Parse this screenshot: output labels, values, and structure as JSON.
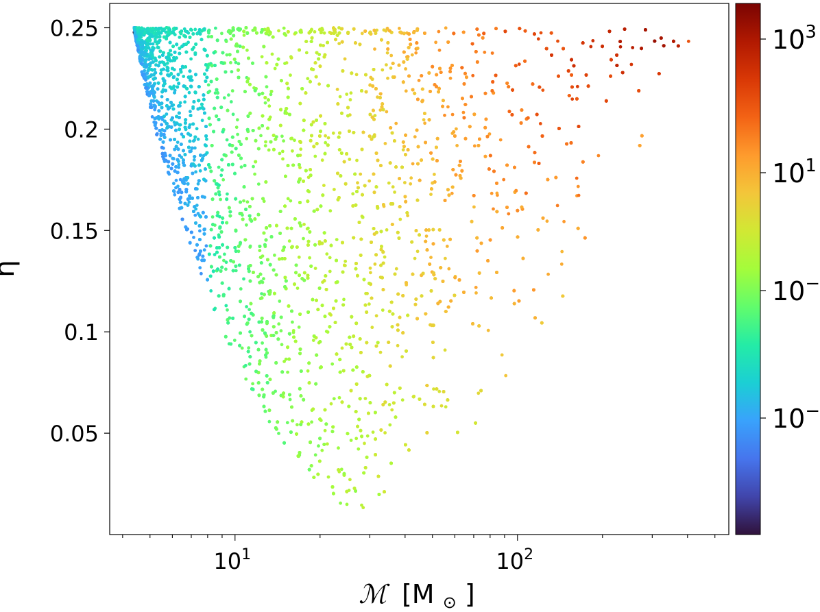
{
  "chart_data": {
    "type": "scatter",
    "title": "",
    "xlabel_symbol": "ℳ",
    "xlabel_unit": "[M",
    "xlabel_unit_close": "]",
    "ylabel": "η",
    "x_scale": "log",
    "xlim": [
      3.6,
      560
    ],
    "ylim": [
      0,
      0.262
    ],
    "x_ticks": [
      {
        "value": 10,
        "base": "10",
        "exp": "1"
      },
      {
        "value": 100,
        "base": "10",
        "exp": "2"
      }
    ],
    "y_ticks": [
      {
        "value": 0.05,
        "label": "0.05"
      },
      {
        "value": 0.1,
        "label": "0.1"
      },
      {
        "value": 0.15,
        "label": "0.15"
      },
      {
        "value": 0.2,
        "label": "0.2"
      },
      {
        "value": 0.25,
        "label": "0.25"
      }
    ],
    "grid": false,
    "legend": "none",
    "colorbar": {
      "scale": "log",
      "colormap": "turbo",
      "ticks": [
        {
          "base": "10",
          "exp": "3"
        },
        {
          "base": "10",
          "exp": "1"
        },
        {
          "base": "10",
          "exp": "−"
        },
        {
          "base": "10",
          "exp": "−"
        }
      ],
      "stops": [
        "#30123b",
        "#4145ab",
        "#4675ed",
        "#39a2fc",
        "#1bcfd4",
        "#24eca6",
        "#61fc6c",
        "#a4fc3b",
        "#d1e834",
        "#f3c63a",
        "#fe9b2d",
        "#f36315",
        "#d93806",
        "#b11901",
        "#7a0402"
      ]
    },
    "point_count": 15000,
    "random_seed": 7,
    "distribution": "points fill the region between the eta=0.25 line and a lower envelope eta_min(M) that falls from 0.25 at M~4.4 to ~0.01 at M~30; point density decreases with M; colour rises from blue near the envelope to red/dark-red at high M and eta near 0.25",
    "points": []
  }
}
